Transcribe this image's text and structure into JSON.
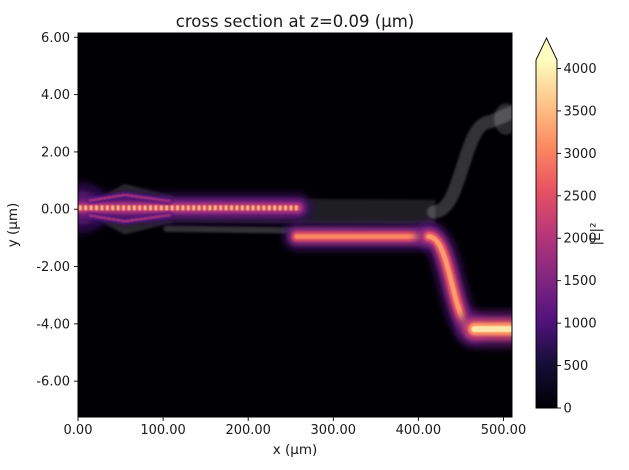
{
  "chart_data": {
    "type": "heatmap",
    "title": "cross section at z=0.09 (μm)",
    "xlabel": "x (μm)",
    "ylabel": "y (μm)",
    "xlim": [
      0,
      510
    ],
    "ylim": [
      -7.25,
      6.15
    ],
    "xticks": [
      0,
      100,
      200,
      300,
      400,
      500
    ],
    "xtick_labels": [
      "0.00",
      "100.00",
      "200.00",
      "300.00",
      "400.00",
      "500.00"
    ],
    "yticks": [
      6,
      4,
      2,
      0,
      -2,
      -4,
      -6
    ],
    "ytick_labels": [
      "6.00",
      "4.00",
      "2.00",
      "0.00",
      "-2.00",
      "-4.00",
      "-6.00"
    ],
    "grid": false,
    "plot_background": "#000004",
    "colormap": "magma",
    "colormap_stops": [
      [
        0.0,
        "#000004"
      ],
      [
        0.125,
        "#140e36"
      ],
      [
        0.25,
        "#51127c"
      ],
      [
        0.375,
        "#832681"
      ],
      [
        0.5,
        "#b73779"
      ],
      [
        0.625,
        "#e75263"
      ],
      [
        0.75,
        "#fc8961"
      ],
      [
        0.875,
        "#fec488"
      ],
      [
        1.0,
        "#fcfdbf"
      ]
    ],
    "colorbar": {
      "label": "|E|²",
      "ticks": [
        0,
        500,
        1000,
        1500,
        2000,
        2500,
        3000,
        3500,
        4000
      ],
      "tick_labels": [
        "0",
        "500",
        "1000",
        "1500",
        "2000",
        "2500",
        "3000",
        "3500",
        "4000"
      ],
      "vmin": 0,
      "vmax": 4100,
      "extend": "max"
    },
    "field_segments": [
      {
        "name": "input-facet",
        "peak": 2600,
        "width": 0.55,
        "path": {
          "type": "line",
          "points": [
            [
              0,
              0.05
            ],
            [
              6,
              0.05
            ]
          ]
        }
      },
      {
        "name": "input-mode",
        "peak": 2350,
        "width": 0.34,
        "beating": true,
        "path": {
          "type": "line",
          "points": [
            [
              1,
              0.05
            ],
            [
              258,
              0.05
            ]
          ]
        }
      },
      {
        "name": "taper-fringe-upper",
        "peak": 1750,
        "width": 0.13,
        "dashed": true,
        "path": {
          "type": "line",
          "points": [
            [
              14,
              0.3
            ],
            [
              55,
              0.5
            ],
            [
              108,
              0.28
            ]
          ]
        }
      },
      {
        "name": "taper-fringe-lower",
        "peak": 1750,
        "width": 0.13,
        "dashed": true,
        "path": {
          "type": "line",
          "points": [
            [
              14,
              -0.22
            ],
            [
              55,
              -0.42
            ],
            [
              108,
              -0.2
            ]
          ]
        }
      },
      {
        "name": "transfer-band",
        "peak": 3050,
        "width": 0.3,
        "path": {
          "type": "line",
          "points": [
            [
              257,
              -0.95
            ],
            [
              412,
              -0.95
            ]
          ]
        }
      },
      {
        "name": "s-bend-down",
        "peak": 3250,
        "width": 0.3,
        "path": {
          "type": "cubic",
          "points": [
            [
              412,
              -0.95
            ],
            [
              439,
              -0.95
            ],
            [
              439,
              -4.18
            ],
            [
              466,
              -4.18
            ]
          ]
        }
      },
      {
        "name": "output-band",
        "peak": 3900,
        "width": 0.4,
        "path": {
          "type": "line",
          "points": [
            [
              466,
              -4.18
            ],
            [
              512,
              -4.18
            ]
          ]
        }
      }
    ],
    "waveguide_overlays": [
      {
        "name": "input-taper",
        "kind": "polygon",
        "opacity": 0.16,
        "points": [
          [
            2,
            0.18
          ],
          [
            14,
            0.24
          ],
          [
            55,
            0.88
          ],
          [
            112,
            0.46
          ],
          [
            112,
            -0.46
          ],
          [
            55,
            -0.88
          ],
          [
            14,
            -0.24
          ],
          [
            2,
            -0.18
          ]
        ]
      },
      {
        "name": "bus-waveguide",
        "kind": "polygon",
        "opacity": 0.12,
        "points": [
          [
            112,
            0.4
          ],
          [
            420,
            0.33
          ],
          [
            420,
            -0.55
          ],
          [
            112,
            -0.45
          ]
        ]
      },
      {
        "name": "lower-waveguide",
        "kind": "stroke",
        "opacity": 0.2,
        "width": 0.22,
        "path": {
          "type": "line",
          "points": [
            [
              104,
              -0.68
            ],
            [
              412,
              -0.8
            ]
          ]
        }
      },
      {
        "name": "upper-branch-bend",
        "kind": "stroke",
        "opacity": 0.2,
        "width": 0.46,
        "path": {
          "type": "cubic",
          "points": [
            [
              418,
              -0.1
            ],
            [
              452,
              -0.1
            ],
            [
              452,
              3.0
            ],
            [
              484,
              3.05
            ],
            [
              512,
              3.4
            ]
          ]
        }
      },
      {
        "name": "upper-branch-end",
        "kind": "ellipse",
        "opacity": 0.17,
        "cx": 503,
        "cy": 3.15,
        "rx": 14,
        "ry": 0.55
      }
    ]
  }
}
